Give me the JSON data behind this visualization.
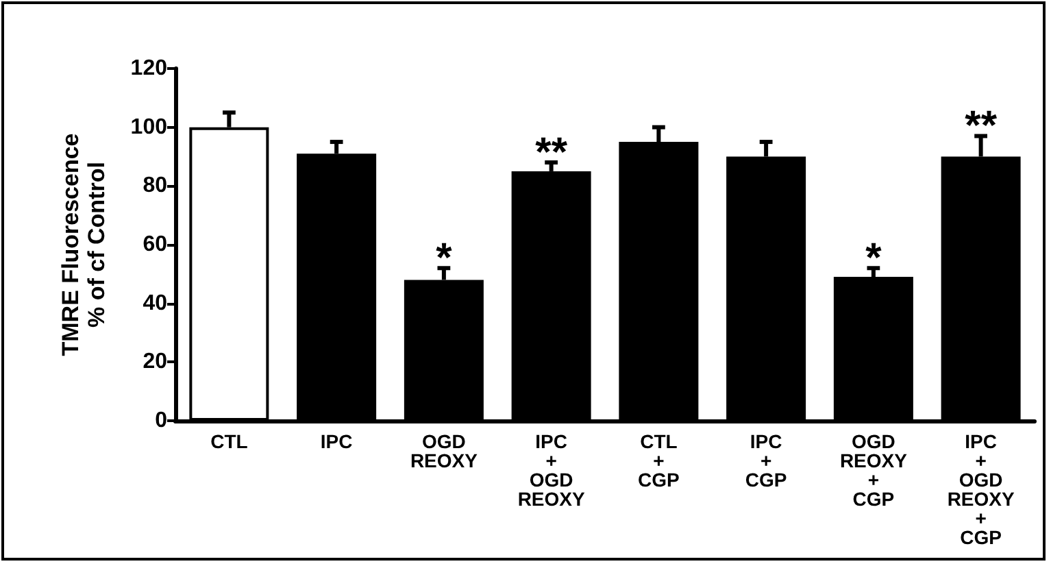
{
  "chart_data": {
    "type": "bar",
    "ylabel": "TMRE Fluorescence\n% of cf Control",
    "categories": [
      "CTL",
      "IPC",
      "OGD\nREOXY",
      "IPC\n+\nOGD\nREOXY",
      "CTL\n+\nCGP",
      "IPC\n+\nCGP",
      "OGD\nREOXY\n+\nCGP",
      "IPC\n+\nOGD\nREOXY\n+\nCGP"
    ],
    "values": [
      100,
      91,
      48,
      85,
      95,
      90,
      49,
      90
    ],
    "errors": [
      5,
      4,
      4,
      3,
      5,
      5,
      3,
      7
    ],
    "colors": [
      "#ffffff",
      "#000000",
      "#000000",
      "#000000",
      "#000000",
      "#000000",
      "#000000",
      "#000000"
    ],
    "ylim": [
      0,
      120
    ],
    "yticks": [
      0,
      20,
      40,
      60,
      80,
      100,
      120
    ],
    "grid": false,
    "annotations": [
      {
        "text": "*",
        "x": "OGD\nREOXY",
        "y": 53
      },
      {
        "text": "**",
        "x": "IPC\n+\nOGD\nREOXY",
        "y": 89
      },
      {
        "text": "*",
        "x": "OGD\nREOXY\n+\nCGP",
        "y": 53
      },
      {
        "text": "**",
        "x": "IPC\n+\nOGD\nREOXY\n+\nCGP",
        "y": 98
      }
    ]
  }
}
